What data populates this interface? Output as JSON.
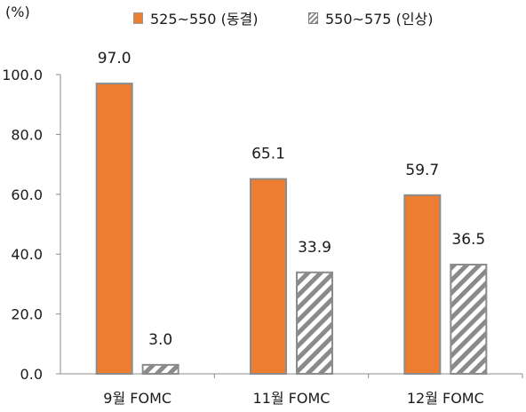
{
  "chart_data": {
    "type": "bar",
    "unit_label": "(%)",
    "categories": [
      "9월 FOMC",
      "11월 FOMC",
      "12월 FOMC"
    ],
    "series": [
      {
        "name": "525~550 (동결)",
        "values": [
          97.0,
          65.1,
          59.7
        ],
        "color": "#ED7D31",
        "fill": "solid"
      },
      {
        "name": "550~575 (인상)",
        "values": [
          3.0,
          33.9,
          36.5
        ],
        "color": "#7F7F7F",
        "fill": "hatched"
      }
    ],
    "value_labels": [
      [
        "97.0",
        "65.1",
        "59.7"
      ],
      [
        "3.0",
        "33.9",
        "36.5"
      ]
    ],
    "y_ticks": [
      "0.0",
      "20.0",
      "40.0",
      "60.0",
      "80.0",
      "100.0"
    ],
    "ylim": [
      0,
      100
    ],
    "legend_position": "top"
  }
}
